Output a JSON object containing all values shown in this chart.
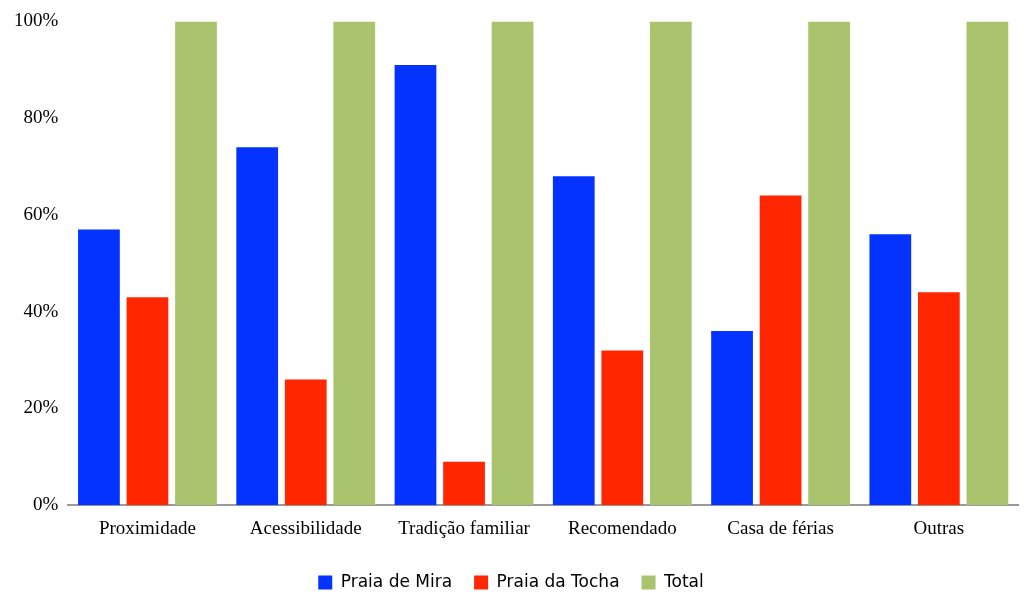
{
  "chart_data": {
    "type": "bar",
    "categories": [
      "Proximidade",
      "Acessibilidade",
      "Tradição familiar",
      "Recomendado",
      "Casa de férias",
      "Outras"
    ],
    "series": [
      {
        "name": "Praia de Mira",
        "color": "#0433ff",
        "values": [
          57,
          74,
          91,
          68,
          36,
          56
        ]
      },
      {
        "name": "Praia da Tocha",
        "color": "#ff2600",
        "values": [
          43,
          26,
          9,
          32,
          64,
          44
        ]
      },
      {
        "name": "Total",
        "color": "#a9c46c",
        "values": [
          100,
          100,
          100,
          100,
          100,
          100
        ]
      }
    ],
    "ylim": [
      0,
      100
    ],
    "yticks": [
      {
        "value": 0,
        "label": "0%"
      },
      {
        "value": 20,
        "label": "20%"
      },
      {
        "value": 40,
        "label": "40%"
      },
      {
        "value": 60,
        "label": "60%"
      },
      {
        "value": 80,
        "label": "80%"
      },
      {
        "value": 100,
        "label": "100%"
      }
    ],
    "grid": false,
    "legend": "bottom"
  }
}
